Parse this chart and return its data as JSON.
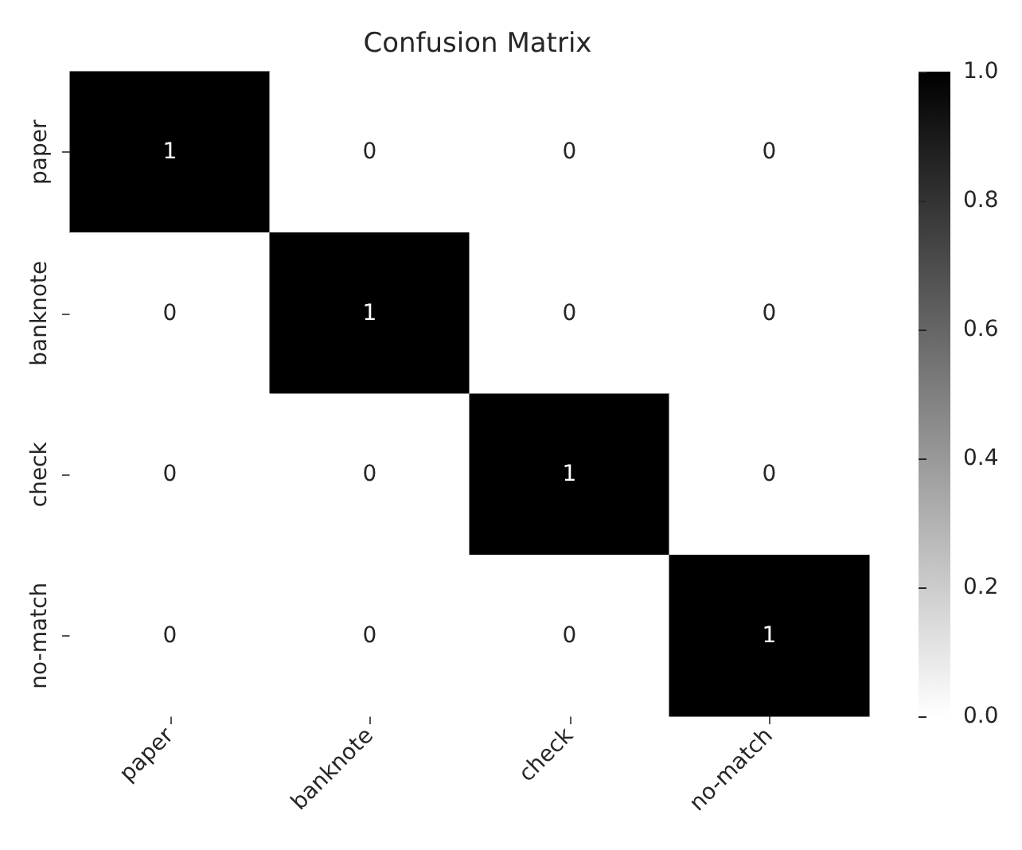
{
  "chart_data": {
    "type": "heatmap",
    "title": "Confusion Matrix",
    "categories": [
      "paper",
      "banknote",
      "check",
      "no-match"
    ],
    "y_categories": [
      "paper",
      "banknote",
      "check",
      "no-match"
    ],
    "cells": [
      [
        1,
        0,
        0,
        0
      ],
      [
        0,
        1,
        0,
        0
      ],
      [
        0,
        0,
        1,
        0
      ],
      [
        0,
        0,
        0,
        1
      ]
    ],
    "data_labels": true,
    "clim": [
      0,
      1
    ],
    "cticks": [
      {
        "value": 0,
        "label": "0.0"
      },
      {
        "value": 0.2,
        "label": "0.2"
      },
      {
        "value": 0.4,
        "label": "0.4"
      },
      {
        "value": 0.6,
        "label": "0.6"
      },
      {
        "value": 0.8,
        "label": "0.8"
      },
      {
        "value": 1,
        "label": "1.0"
      }
    ]
  }
}
